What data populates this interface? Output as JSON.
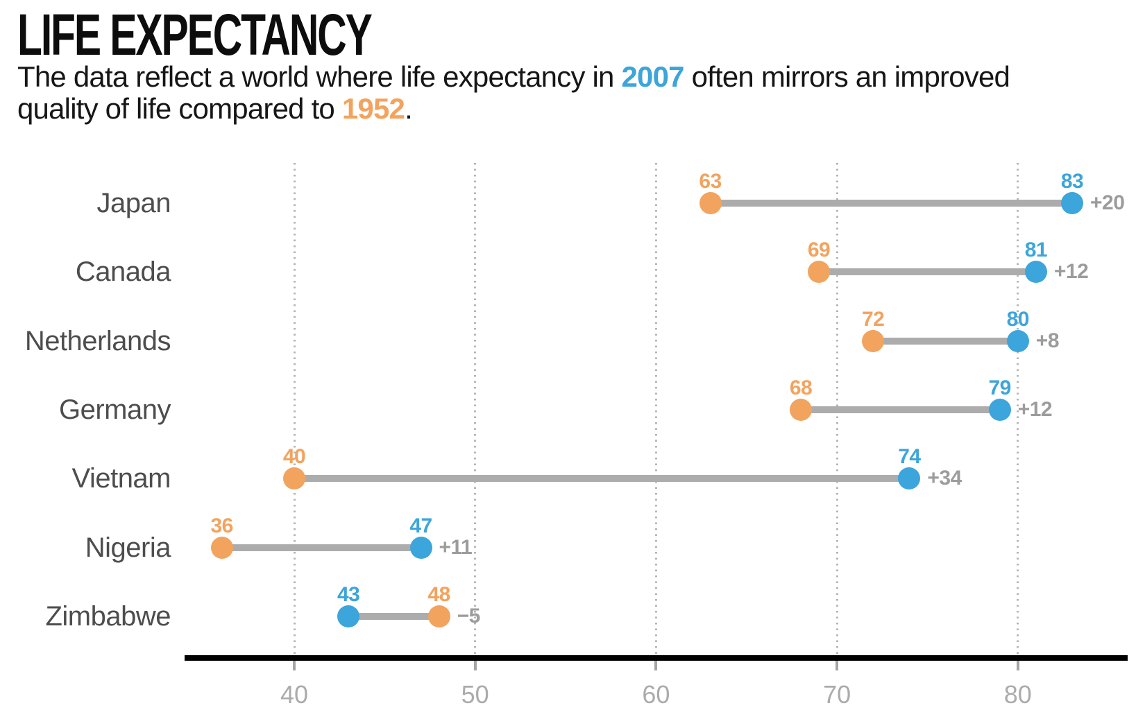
{
  "header": {
    "title": "LIFE EXPECTANCY",
    "sub": {
      "l1a": "The data reflect a world where life expectancy in ",
      "y2007": "2007",
      "l1b": " often mirrors an improved",
      "l2a": "quality of life compared to ",
      "y1952": "1952",
      "l2b": "."
    }
  },
  "colors": {
    "accent_1952": "#F2A35E",
    "accent_2007": "#3CA5DB",
    "connector": "#ACACAC",
    "delta_label": "#9C9C9C",
    "axis_line": "#000000",
    "tick_mark": "#A5A5A5",
    "tick_label": "#ABABAB",
    "gridline": "#B5B5B5",
    "country_label": "#4D4D4D"
  },
  "chart_data": {
    "type": "dumbbell",
    "title": "LIFE EXPECTANCY",
    "subtitle": "The data reflect a world where life expectancy in 2007 often mirrors an improved quality of life compared to 1952.",
    "categories": [
      "Japan",
      "Canada",
      "Netherlands",
      "Germany",
      "Vietnam",
      "Nigeria",
      "Zimbabwe"
    ],
    "series": [
      {
        "name": "1952",
        "values": [
          63,
          69,
          72,
          68,
          40,
          36,
          48
        ]
      },
      {
        "name": "2007",
        "values": [
          83,
          81,
          80,
          79,
          74,
          47,
          43
        ]
      }
    ],
    "deltas": [
      "+20",
      "+12",
      "+8",
      "+12",
      "+34",
      "+11",
      "−5"
    ],
    "xticks": [
      40,
      50,
      60,
      70,
      80
    ],
    "xlabel": "",
    "ylabel": "",
    "xlim": [
      34,
      86
    ],
    "grid": "vertical-dotted",
    "legend_position": "none (years referenced in subtitle)"
  }
}
